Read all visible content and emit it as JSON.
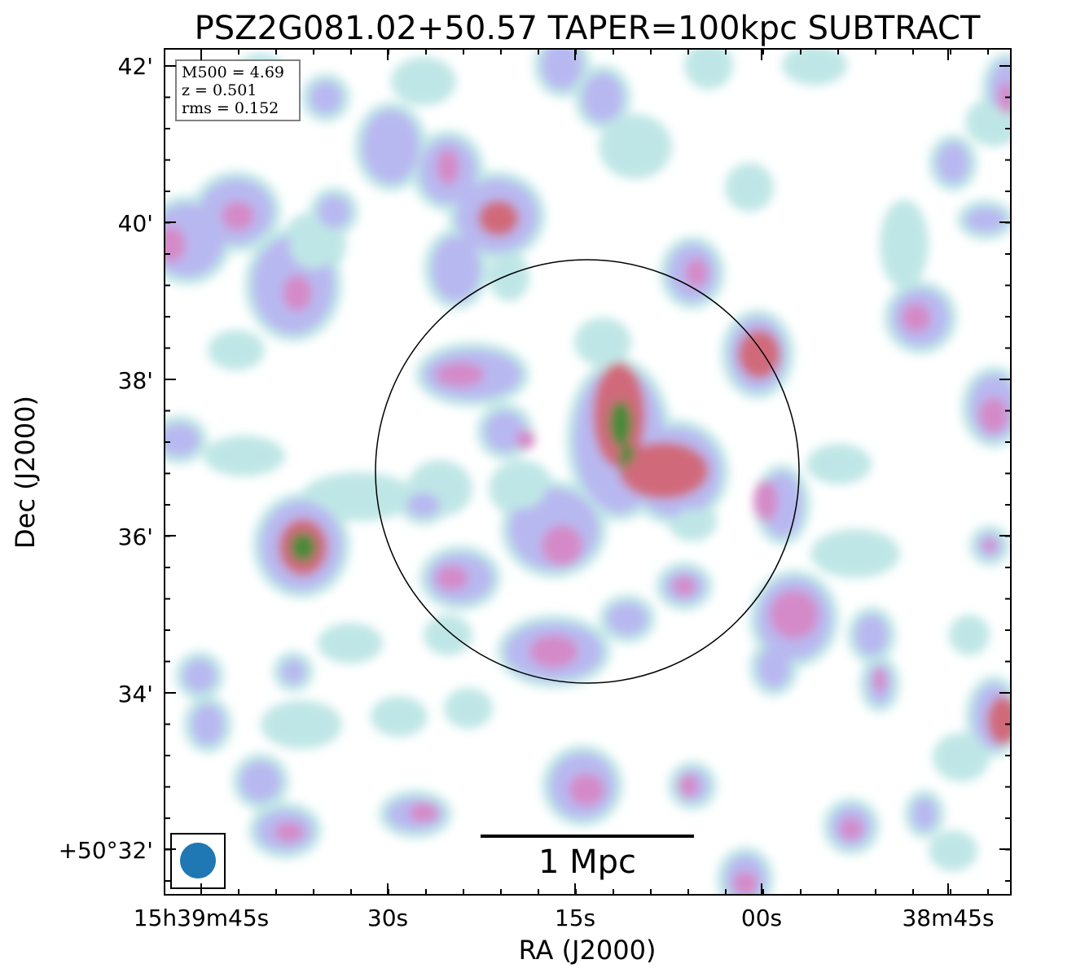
{
  "chart_data": {
    "type": "heatmap",
    "title": "PSZ2G081.02+50.57 TAPER=100kpc SUBTRACT",
    "xlabel": "RA (J2000)",
    "ylabel": "Dec (J2000)",
    "x_ticks": [
      "15h39m45s",
      "30s",
      "15s",
      "00s",
      "38m45s"
    ],
    "y_ticks": [
      "42'",
      "40'",
      "38'",
      "36'",
      "34'",
      "+50°32'"
    ],
    "info_box": [
      "M500 = 4.69",
      "z = 0.501",
      "rms = 0.152"
    ],
    "scale_bar_label": "1 Mpc",
    "colormap": [
      "#ffffff",
      "#bfe6e6",
      "#b8b8f0",
      "#d48ac8",
      "#d06a7a",
      "#4a8a3a"
    ],
    "beam_color": "#1f77b4"
  }
}
